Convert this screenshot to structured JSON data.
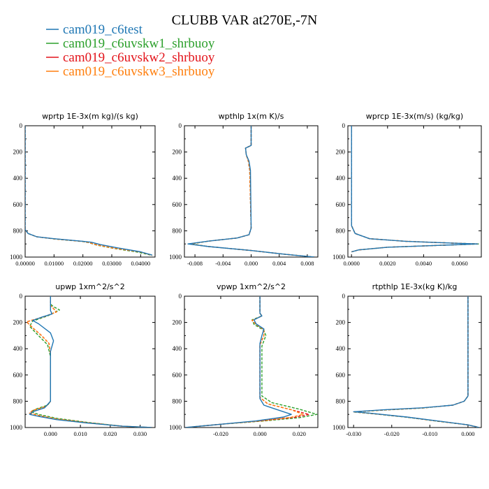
{
  "title": "CLUBB VAR at270E,-7N",
  "colors": {
    "cam019_c6test": "#1f77b4",
    "cam019_c6uvskw1_shrbuoy": "#2ca02c",
    "cam019_c6uvskw2_shrbuoy": "#e3141b",
    "cam019_c6uvskw3_shrbuoy": "#ff7f0e"
  },
  "legend": [
    {
      "name": "cam019_c6test",
      "color": "#1f77b4",
      "dash": "solid"
    },
    {
      "name": "cam019_c6uvskw1_shrbuoy",
      "color": "#2ca02c",
      "dash": "dashed"
    },
    {
      "name": "cam019_c6uvskw2_shrbuoy",
      "color": "#e3141b",
      "dash": "dashed"
    },
    {
      "name": "cam019_c6uvskw3_shrbuoy",
      "color": "#ff7f0e",
      "dash": "dashed"
    }
  ],
  "chart_data": [
    {
      "type": "line",
      "title": "wprtp  1E-3x(m kg)/(s kg)",
      "xlim": [
        0,
        0.045
      ],
      "ylim": [
        1000,
        0
      ],
      "xticks": [
        "0.00000",
        "0.01000",
        "0.02000",
        "0.03000",
        "0.04000"
      ],
      "xtick_values": [
        0,
        0.01,
        0.02,
        0.03,
        0.04
      ],
      "yticks": [
        0,
        200,
        400,
        600,
        800,
        1000
      ],
      "series": [
        {
          "name": "cam019_c6test",
          "x": [
            0,
            0,
            0.001,
            0.004,
            0.01,
            0.016,
            0.02,
            0.023,
            0.026,
            0.032,
            0.04,
            0.044
          ],
          "y": [
            0,
            790,
            820,
            845,
            860,
            872,
            880,
            887,
            905,
            930,
            960,
            985
          ]
        },
        {
          "name": "cam019_c6uvskw1_shrbuoy",
          "x": [
            0,
            0,
            0.001,
            0.004,
            0.01,
            0.016,
            0.02,
            0.022,
            0.025,
            0.031,
            0.039,
            0.044
          ],
          "y": [
            0,
            790,
            820,
            845,
            862,
            874,
            882,
            890,
            910,
            935,
            962,
            988
          ]
        },
        {
          "name": "cam019_c6uvskw2_shrbuoy",
          "x": [
            0,
            0,
            0.001,
            0.004,
            0.01,
            0.016,
            0.02,
            0.022,
            0.025,
            0.031,
            0.04,
            0.044
          ],
          "y": [
            0,
            790,
            820,
            845,
            861,
            873,
            881,
            889,
            908,
            933,
            961,
            986
          ]
        },
        {
          "name": "cam019_c6uvskw3_shrbuoy",
          "x": [
            0,
            0,
            0.001,
            0.004,
            0.01,
            0.016,
            0.02,
            0.022,
            0.025,
            0.031,
            0.04,
            0.044
          ],
          "y": [
            0,
            790,
            820,
            845,
            861,
            873,
            881,
            889,
            908,
            933,
            961,
            986
          ]
        }
      ]
    },
    {
      "type": "line",
      "title": "wpthlp  1x(m K)/s",
      "xlim": [
        -0.0095,
        0.0095
      ],
      "ylim": [
        1000,
        0
      ],
      "xticks": [
        "-0.008",
        "-0.004",
        "0.000",
        "0.004",
        "0.008"
      ],
      "xtick_values": [
        -0.008,
        -0.004,
        0,
        0.004,
        0.008
      ],
      "yticks": [
        0,
        200,
        400,
        600,
        800,
        1000
      ],
      "series": [
        {
          "name": "cam019_c6test",
          "x": [
            0,
            0,
            -0.0008,
            -0.0007,
            -0.0003,
            -0.0001,
            0,
            -0.0003,
            -0.002,
            -0.006,
            -0.009,
            -0.006,
            0,
            0.005,
            0.009
          ],
          "y": [
            0,
            150,
            170,
            220,
            270,
            340,
            780,
            830,
            855,
            878,
            900,
            920,
            950,
            980,
            1000
          ]
        },
        {
          "name": "cam019_c6uvskw1_shrbuoy",
          "x": [
            0,
            0,
            -0.0008,
            -0.0007,
            -0.0004,
            -0.0002,
            0,
            -0.0003,
            -0.002,
            -0.006,
            -0.0085,
            -0.006,
            0,
            0.005,
            0.009
          ],
          "y": [
            0,
            150,
            170,
            220,
            270,
            340,
            780,
            830,
            855,
            878,
            900,
            920,
            950,
            980,
            1000
          ]
        },
        {
          "name": "cam019_c6uvskw2_shrbuoy",
          "x": [
            0,
            0,
            -0.0008,
            -0.0007,
            -0.0004,
            -0.0002,
            0,
            -0.0003,
            -0.002,
            -0.006,
            -0.0088,
            -0.006,
            0,
            0.005,
            0.009
          ],
          "y": [
            0,
            150,
            170,
            220,
            270,
            340,
            780,
            830,
            855,
            878,
            900,
            920,
            950,
            980,
            1000
          ]
        },
        {
          "name": "cam019_c6uvskw3_shrbuoy",
          "x": [
            0,
            0,
            -0.0008,
            -0.0007,
            -0.0004,
            -0.0002,
            0,
            -0.0003,
            -0.002,
            -0.006,
            -0.0088,
            -0.006,
            0,
            0.005,
            0.009
          ],
          "y": [
            0,
            150,
            170,
            220,
            270,
            340,
            780,
            830,
            855,
            878,
            900,
            920,
            950,
            980,
            1000
          ]
        }
      ]
    },
    {
      "type": "line",
      "title": "wprcp  1E-3x(m/s) (kg/kg)",
      "xlim": [
        -0.0002,
        0.0072
      ],
      "ylim": [
        1000,
        0
      ],
      "xticks": [
        "0.0000",
        "0.0020",
        "0.0040",
        "0.0060"
      ],
      "xtick_values": [
        0,
        0.002,
        0.004,
        0.006
      ],
      "yticks": [
        0,
        200,
        400,
        600,
        800,
        1000
      ],
      "series": [
        {
          "name": "cam019_c6test",
          "x": [
            0,
            0,
            0.0002,
            0.001,
            0.003,
            0.0055,
            0.007,
            0.005,
            0.002,
            0.0004,
            0
          ],
          "y": [
            0,
            760,
            820,
            860,
            880,
            893,
            900,
            910,
            925,
            945,
            960
          ]
        },
        {
          "name": "cam019_c6uvskw1_shrbuoy",
          "x": [
            0,
            0,
            0.0002,
            0.001,
            0.003,
            0.0055,
            0.0071,
            0.005,
            0.002,
            0.0004,
            0
          ],
          "y": [
            0,
            760,
            820,
            860,
            880,
            893,
            900,
            910,
            925,
            945,
            960
          ]
        },
        {
          "name": "cam019_c6uvskw2_shrbuoy",
          "x": [
            0,
            0,
            0.0002,
            0.001,
            0.003,
            0.0055,
            0.007,
            0.005,
            0.002,
            0.0004,
            0
          ],
          "y": [
            0,
            760,
            820,
            860,
            880,
            893,
            900,
            910,
            925,
            945,
            960
          ]
        },
        {
          "name": "cam019_c6uvskw3_shrbuoy",
          "x": [
            0,
            0,
            0.0002,
            0.001,
            0.003,
            0.0055,
            0.007,
            0.005,
            0.002,
            0.0004,
            0
          ],
          "y": [
            0,
            760,
            820,
            860,
            880,
            893,
            900,
            910,
            925,
            945,
            960
          ]
        }
      ]
    },
    {
      "type": "line",
      "title": "upwp  1xm^2/s^2",
      "xlim": [
        -0.0085,
        0.035
      ],
      "ylim": [
        1000,
        0
      ],
      "xticks": [
        "0.000",
        "0.010",
        "0.020",
        "0.030"
      ],
      "xtick_values": [
        0,
        0.01,
        0.02,
        0.03
      ],
      "yticks": [
        0,
        200,
        400,
        600,
        800,
        1000
      ],
      "series": [
        {
          "name": "cam019_c6test",
          "x": [
            0,
            0,
            0,
            0.0005,
            -0.003,
            -0.006,
            -0.004,
            0,
            0.001,
            0,
            0,
            0,
            -0.002,
            -0.006,
            -0.007,
            -0.004,
            0.002,
            0.012,
            0.024,
            0.034
          ],
          "y": [
            0,
            80,
            110,
            135,
            160,
            185,
            210,
            280,
            340,
            420,
            600,
            800,
            850,
            880,
            900,
            915,
            940,
            965,
            990,
            1000
          ]
        },
        {
          "name": "cam019_c6uvskw1_shrbuoy",
          "x": [
            0,
            0,
            0.001,
            0.003,
            -0.001,
            -0.006,
            -0.007,
            -0.004,
            -0.001,
            0,
            0,
            0,
            -0.001,
            -0.005,
            -0.0065,
            -0.004,
            0.002,
            0.012,
            0.024,
            0.034
          ],
          "y": [
            0,
            60,
            80,
            105,
            150,
            190,
            230,
            300,
            370,
            460,
            620,
            800,
            830,
            860,
            880,
            900,
            930,
            960,
            990,
            1000
          ]
        },
        {
          "name": "cam019_c6uvskw2_shrbuoy",
          "x": [
            0,
            0,
            0.0008,
            0.002,
            -0.002,
            -0.008,
            -0.006,
            -0.003,
            -0.0005,
            0,
            0,
            0,
            -0.0015,
            -0.006,
            -0.007,
            -0.004,
            0.002,
            0.012,
            0.024,
            0.034
          ],
          "y": [
            0,
            70,
            90,
            120,
            155,
            195,
            240,
            300,
            360,
            440,
            610,
            800,
            840,
            870,
            890,
            908,
            935,
            962,
            990,
            1000
          ]
        },
        {
          "name": "cam019_c6uvskw3_shrbuoy",
          "x": [
            0,
            0,
            0.0008,
            0.002,
            -0.002,
            -0.008,
            -0.006,
            -0.003,
            -0.0005,
            0,
            0,
            0,
            -0.0015,
            -0.006,
            -0.007,
            -0.004,
            0.002,
            0.012,
            0.024,
            0.034
          ],
          "y": [
            0,
            70,
            90,
            120,
            155,
            195,
            240,
            300,
            360,
            440,
            610,
            800,
            840,
            870,
            890,
            908,
            935,
            962,
            990,
            1000
          ]
        }
      ]
    },
    {
      "type": "line",
      "title": "vpwp  1xm^2/s^2",
      "xlim": [
        -0.0385,
        0.0295
      ],
      "ylim": [
        1000,
        0
      ],
      "xticks": [
        "-0.020",
        "0.000",
        "0.020"
      ],
      "xtick_values": [
        -0.02,
        0,
        0.02
      ],
      "yticks": [
        0,
        200,
        400,
        600,
        800,
        1000
      ],
      "series": [
        {
          "name": "cam019_c6test",
          "x": [
            0,
            0,
            0.001,
            -0.003,
            -0.002,
            0.002,
            0.001,
            0,
            0,
            0.002,
            0.01,
            0.016,
            0.012,
            -0.002,
            -0.02,
            -0.038
          ],
          "y": [
            0,
            130,
            150,
            180,
            210,
            250,
            300,
            360,
            780,
            830,
            870,
            900,
            920,
            950,
            975,
            1000
          ]
        },
        {
          "name": "cam019_c6uvskw1_shrbuoy",
          "x": [
            0,
            0,
            0.001,
            -0.004,
            -0.003,
            0.002,
            0.003,
            0.001,
            0.001,
            0.006,
            0.02,
            0.029,
            0.02,
            0.002,
            -0.02,
            -0.038
          ],
          "y": [
            0,
            130,
            150,
            180,
            215,
            260,
            300,
            380,
            760,
            810,
            860,
            900,
            925,
            950,
            975,
            1000
          ]
        },
        {
          "name": "cam019_c6uvskw2_shrbuoy",
          "x": [
            0,
            0,
            0.001,
            -0.004,
            -0.002,
            0.002,
            0.002,
            0,
            0,
            0.004,
            0.016,
            0.025,
            0.018,
            0,
            -0.02,
            -0.038
          ],
          "y": [
            0,
            130,
            150,
            185,
            215,
            255,
            300,
            370,
            770,
            820,
            865,
            900,
            922,
            950,
            975,
            1000
          ]
        },
        {
          "name": "cam019_c6uvskw3_shrbuoy",
          "x": [
            0,
            0,
            0.001,
            -0.004,
            -0.002,
            0.002,
            0.002,
            0,
            0,
            0.004,
            0.016,
            0.022,
            0.016,
            0,
            -0.02,
            -0.038
          ],
          "y": [
            0,
            130,
            150,
            185,
            215,
            255,
            300,
            370,
            770,
            820,
            865,
            900,
            922,
            950,
            975,
            1000
          ]
        }
      ]
    },
    {
      "type": "line",
      "title": "rtpthlp  1E-3x(kg K)/kg",
      "xlim": [
        -0.0315,
        0.0035
      ],
      "ylim": [
        1000,
        0
      ],
      "xticks": [
        "-0.030",
        "-0.020",
        "-0.010",
        "0.000"
      ],
      "xtick_values": [
        -0.03,
        -0.02,
        -0.01,
        0
      ],
      "yticks": [
        0,
        200,
        400,
        600,
        800,
        1000
      ],
      "series": [
        {
          "name": "cam019_c6test",
          "x": [
            0,
            0,
            -0.001,
            -0.004,
            -0.012,
            -0.022,
            -0.03,
            -0.026,
            -0.016,
            -0.008,
            0,
            0.003
          ],
          "y": [
            0,
            760,
            800,
            830,
            850,
            865,
            880,
            890,
            920,
            950,
            980,
            1000
          ]
        },
        {
          "name": "cam019_c6uvskw1_shrbuoy",
          "x": [
            0,
            0,
            -0.001,
            -0.004,
            -0.012,
            -0.022,
            -0.03,
            -0.026,
            -0.016,
            -0.008,
            0,
            0.003
          ],
          "y": [
            0,
            760,
            800,
            830,
            852,
            867,
            882,
            892,
            922,
            952,
            980,
            1000
          ]
        },
        {
          "name": "cam019_c6uvskw2_shrbuoy",
          "x": [
            0,
            0,
            -0.001,
            -0.004,
            -0.012,
            -0.022,
            -0.03,
            -0.026,
            -0.016,
            -0.008,
            0,
            0.003
          ],
          "y": [
            0,
            760,
            800,
            830,
            851,
            866,
            881,
            891,
            921,
            951,
            980,
            1000
          ]
        },
        {
          "name": "cam019_c6uvskw3_shrbuoy",
          "x": [
            0,
            0,
            -0.001,
            -0.004,
            -0.012,
            -0.022,
            -0.03,
            -0.026,
            -0.016,
            -0.008,
            0,
            0.003
          ],
          "y": [
            0,
            760,
            800,
            830,
            851,
            866,
            881,
            891,
            921,
            951,
            980,
            1000
          ]
        }
      ]
    }
  ]
}
